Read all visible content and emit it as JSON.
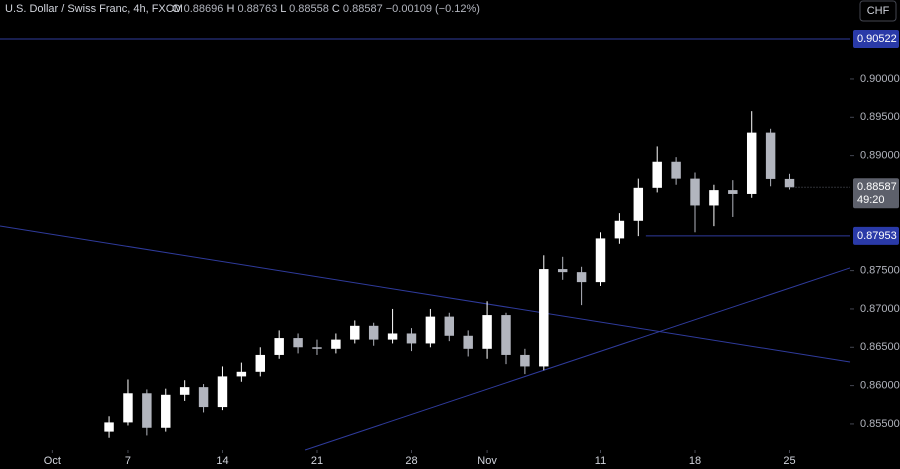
{
  "chart_data": {
    "type": "candlestick",
    "title": "U.S. Dollar / Swiss Franc, 4h, FXCM",
    "ohlc_header": {
      "open_label": "O",
      "open": 0.88696,
      "high_label": "H",
      "high": 0.88763,
      "low_label": "L",
      "low": 0.88558,
      "close_label": "C",
      "close": 0.88587,
      "change": {
        "value": -0.00109,
        "label": "−0.00109"
      },
      "change_pct": {
        "value": -0.12,
        "label": "(−0.12%)"
      }
    },
    "currency": "CHF",
    "x": [
      3,
      4,
      5,
      6,
      7,
      8,
      9,
      10,
      11,
      12,
      13,
      14,
      15,
      16,
      17,
      18,
      19,
      20,
      21,
      22,
      23,
      24,
      25,
      26,
      27,
      28,
      29,
      30,
      31,
      32,
      33,
      34,
      35,
      36,
      37,
      38,
      39
    ],
    "open": [
      0.854,
      0.8552,
      0.859,
      0.8545,
      0.8588,
      0.8598,
      0.8572,
      0.8612,
      0.8618,
      0.864,
      0.8662,
      0.865,
      0.8648,
      0.866,
      0.8678,
      0.866,
      0.8668,
      0.8655,
      0.869,
      0.8665,
      0.8648,
      0.8692,
      0.864,
      0.8625,
      0.8752,
      0.8748,
      0.8735,
      0.8792,
      0.8815,
      0.8858,
      0.8892,
      0.887,
      0.8835,
      0.8855,
      0.885,
      0.893,
      0.88696
    ],
    "high": [
      0.856,
      0.8608,
      0.8595,
      0.8596,
      0.8607,
      0.8602,
      0.8625,
      0.863,
      0.865,
      0.8672,
      0.8668,
      0.866,
      0.8668,
      0.8685,
      0.8682,
      0.87,
      0.8675,
      0.87,
      0.8695,
      0.8672,
      0.871,
      0.8695,
      0.8648,
      0.877,
      0.8768,
      0.8755,
      0.88,
      0.8825,
      0.887,
      0.8912,
      0.8898,
      0.8878,
      0.8862,
      0.8868,
      0.8958,
      0.8935,
      0.88763
    ],
    "low": [
      0.8532,
      0.8548,
      0.8535,
      0.854,
      0.858,
      0.8565,
      0.8568,
      0.8605,
      0.8612,
      0.8635,
      0.8642,
      0.864,
      0.8642,
      0.8655,
      0.8652,
      0.8655,
      0.8645,
      0.865,
      0.8658,
      0.8638,
      0.8635,
      0.8628,
      0.8615,
      0.862,
      0.8738,
      0.8705,
      0.873,
      0.8785,
      0.8795,
      0.8852,
      0.8862,
      0.88,
      0.8808,
      0.882,
      0.8845,
      0.886,
      0.88558
    ],
    "close": [
      0.8552,
      0.859,
      0.8545,
      0.8588,
      0.8598,
      0.8572,
      0.8612,
      0.8618,
      0.864,
      0.8662,
      0.865,
      0.8648,
      0.866,
      0.8678,
      0.866,
      0.8668,
      0.8655,
      0.869,
      0.8665,
      0.8648,
      0.8692,
      0.864,
      0.8625,
      0.8752,
      0.8748,
      0.8735,
      0.8792,
      0.8815,
      0.8858,
      0.8892,
      0.887,
      0.8835,
      0.8855,
      0.885,
      0.893,
      0.88696,
      0.88587
    ],
    "up_color": "#ffffff",
    "down_color": "#b2b5be",
    "xlim": [
      -2.77,
      42.2
    ],
    "ylim": [
      0.8516,
      0.9103
    ],
    "xticks": [
      {
        "value": 0,
        "label": "Oct"
      },
      {
        "value": 4,
        "label": "7"
      },
      {
        "value": 9,
        "label": "14"
      },
      {
        "value": 14,
        "label": "21"
      },
      {
        "value": 19,
        "label": "28"
      },
      {
        "value": 23,
        "label": "Nov"
      },
      {
        "value": 29,
        "label": "11"
      },
      {
        "value": 34,
        "label": "18"
      },
      {
        "value": 39,
        "label": "25"
      }
    ],
    "yticks": [
      {
        "value": 0.855,
        "label": "0.85500"
      },
      {
        "value": 0.86,
        "label": "0.86000"
      },
      {
        "value": 0.865,
        "label": "0.86500"
      },
      {
        "value": 0.87,
        "label": "0.87000"
      },
      {
        "value": 0.875,
        "label": "0.87500"
      },
      {
        "value": 0.89,
        "label": "0.89000"
      },
      {
        "value": 0.895,
        "label": "0.89500"
      },
      {
        "value": 0.9,
        "label": "0.90000"
      }
    ],
    "price_lines": [
      {
        "value": 0.90522,
        "x_start": -2.77
      },
      {
        "value": 0.87953,
        "x_start": 31.4
      }
    ],
    "line_color": "#2f3b9c",
    "trendlines": [
      {
        "x": [
          -2.77,
          42.2
        ],
        "y": [
          0.88082,
          0.86308
        ]
      },
      {
        "x": [
          13.37,
          42.2
        ],
        "y": [
          0.8516,
          0.87535
        ]
      }
    ],
    "last_price": 0.88587,
    "countdown": "49:20"
  }
}
